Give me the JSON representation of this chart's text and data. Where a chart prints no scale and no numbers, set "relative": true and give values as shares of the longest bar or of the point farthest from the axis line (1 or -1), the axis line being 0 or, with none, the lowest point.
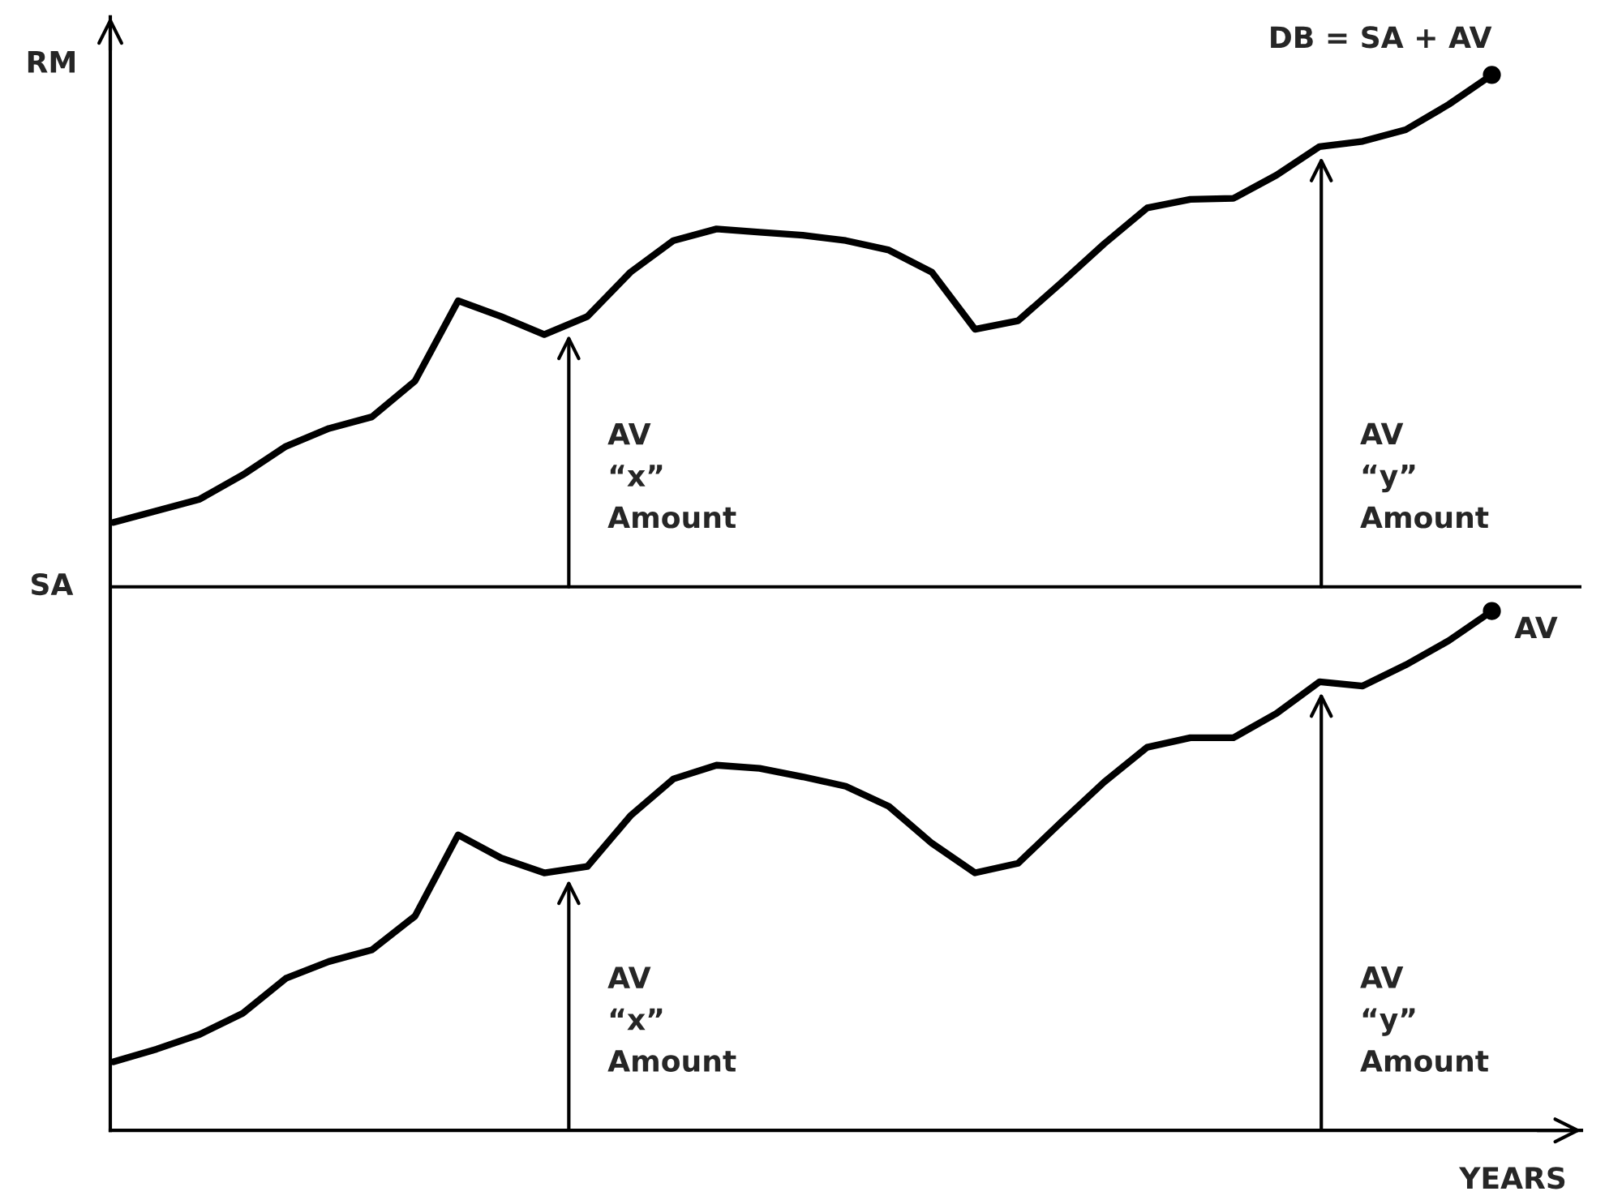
{
  "chart_data": {
    "type": "line",
    "relative": true,
    "ylabel": "RM",
    "xlabel": "YEARS",
    "categories": [
      null,
      null,
      null,
      null,
      null,
      null,
      null,
      null,
      null,
      null,
      null,
      null,
      null,
      null,
      null,
      null,
      null,
      null,
      null,
      null,
      null,
      null,
      null,
      null,
      null,
      null,
      null,
      null,
      null,
      null,
      null,
      null,
      null
    ],
    "series": [
      {
        "name": "DB = SA + AV",
        "color": "#000000",
        "values": [
          0.576,
          0.587,
          0.598,
          0.621,
          0.648,
          0.665,
          0.676,
          0.71,
          0.786,
          0.771,
          0.754,
          0.771,
          0.813,
          0.843,
          0.854,
          0.851,
          0.848,
          0.843,
          0.834,
          0.813,
          0.759,
          0.767,
          0.803,
          0.84,
          0.874,
          0.882,
          0.883,
          0.905,
          0.932,
          0.937,
          0.948,
          0.972,
          1
        ]
      },
      {
        "name": "AV",
        "color": "#000000",
        "values": [
          0.065,
          0.077,
          0.091,
          0.111,
          0.144,
          0.16,
          0.171,
          0.203,
          0.28,
          0.258,
          0.244,
          0.25,
          0.298,
          0.333,
          0.346,
          0.343,
          0.335,
          0.326,
          0.307,
          0.272,
          0.244,
          0.253,
          0.292,
          0.33,
          0.363,
          0.372,
          0.372,
          0.395,
          0.425,
          0.421,
          0.441,
          0.464,
          0.492
        ]
      }
    ],
    "ref_lines": [
      {
        "axis": "y",
        "value": 0.515,
        "label": "SA",
        "color": "#000000"
      }
    ],
    "annotations": [
      "AV\n“x”\nAmount",
      "AV\n“y”\nAmount",
      "AV\n“x”\nAmount",
      "AV\n“y”\nAmount"
    ],
    "line_style": "solid"
  }
}
